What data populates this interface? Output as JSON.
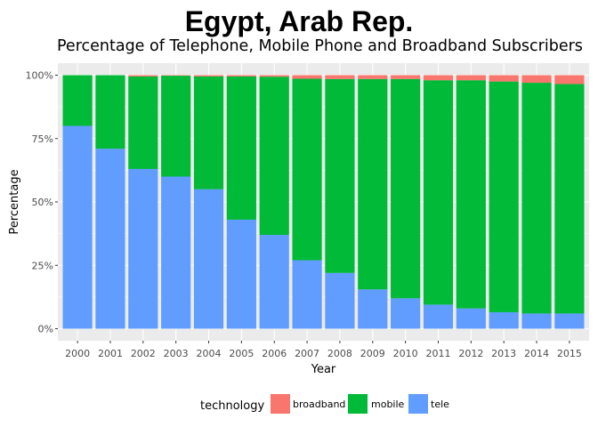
{
  "chart_data": {
    "type": "bar",
    "stacked": true,
    "title": "Egypt, Arab Rep.",
    "subtitle": "Percentage of Telephone, Mobile Phone and Broadband Subscribers",
    "xlabel": "Year",
    "ylabel": "Percentage",
    "ylim": [
      0,
      1
    ],
    "yticks": [
      "0%",
      "25%",
      "50%",
      "75%",
      "100%"
    ],
    "grid": true,
    "legend_position": "bottom",
    "legend_title": "technology",
    "categories": [
      "2000",
      "2001",
      "2002",
      "2003",
      "2004",
      "2005",
      "2006",
      "2007",
      "2008",
      "2009",
      "2010",
      "2011",
      "2012",
      "2013",
      "2014",
      "2015"
    ],
    "series": [
      {
        "name": "tele",
        "color": "#619CFF",
        "values": [
          0.8,
          0.71,
          0.63,
          0.6,
          0.55,
          0.43,
          0.37,
          0.27,
          0.22,
          0.155,
          0.12,
          0.095,
          0.08,
          0.065,
          0.06,
          0.06
        ]
      },
      {
        "name": "mobile",
        "color": "#00BA38",
        "values": [
          0.2,
          0.29,
          0.365,
          0.398,
          0.445,
          0.565,
          0.624,
          0.716,
          0.765,
          0.83,
          0.865,
          0.885,
          0.9,
          0.91,
          0.91,
          0.905
        ]
      },
      {
        "name": "broadband",
        "color": "#F8766D",
        "values": [
          0.0,
          0.0,
          0.005,
          0.002,
          0.005,
          0.005,
          0.006,
          0.014,
          0.015,
          0.015,
          0.015,
          0.02,
          0.02,
          0.025,
          0.03,
          0.035
        ]
      }
    ],
    "legend_order": [
      "broadband",
      "mobile",
      "tele"
    ],
    "panel_background": "#EBEBEB",
    "grid_color": "#FFFFFF"
  }
}
